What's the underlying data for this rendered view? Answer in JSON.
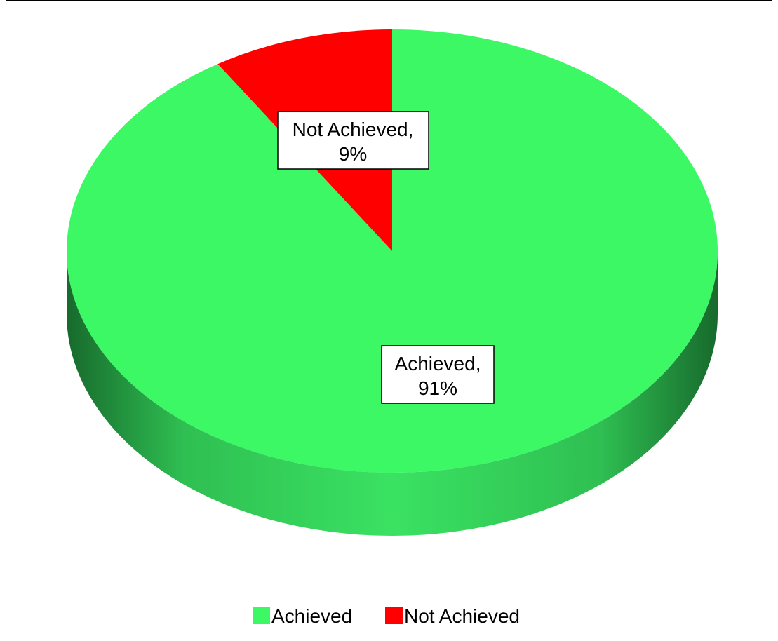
{
  "chart_data": {
    "type": "pie",
    "style": "3d",
    "slices": [
      {
        "label": "Achieved",
        "value": 91,
        "display": "91%",
        "color": "#3cf865"
      },
      {
        "label": "Not Achieved",
        "value": 9,
        "display": "9%",
        "color": "#ff0000"
      }
    ],
    "data_labels": [
      {
        "line1": "Not Achieved,",
        "line2": "9%"
      },
      {
        "line1": "Achieved,",
        "line2": "91%"
      }
    ],
    "legend": {
      "placement": "bottom",
      "entries": [
        "Achieved",
        "Not Achieved"
      ]
    }
  }
}
